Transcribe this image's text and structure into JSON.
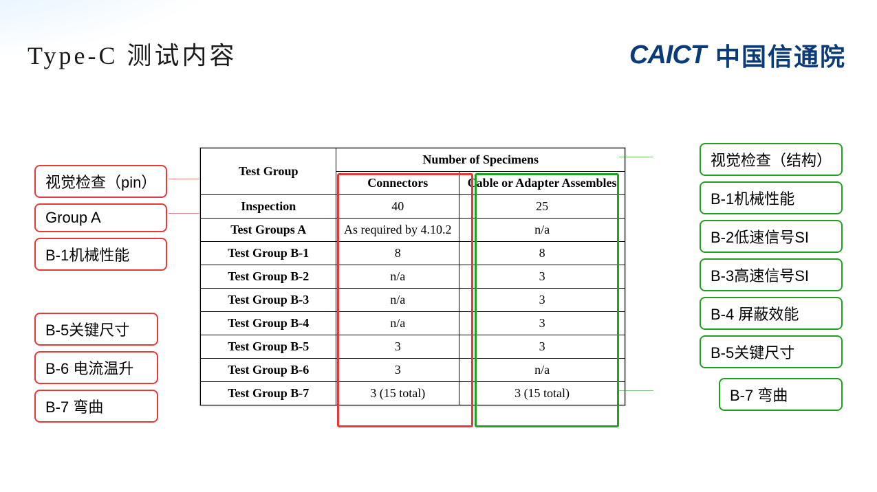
{
  "title": "Type-C 测试内容",
  "logo": {
    "mark": "CAICT",
    "cn": "中国信通院"
  },
  "colors": {
    "red": "#e63939",
    "green": "#1fa01f",
    "brand": "#0a3a7a",
    "table_border": "#000000",
    "background": "#ffffff"
  },
  "pills_left_1": [
    {
      "text": "视觉检查（pin）"
    },
    {
      "text": "Group A"
    },
    {
      "text": "B-1机械性能"
    }
  ],
  "pills_left_2": [
    {
      "text": "B-5关键尺寸"
    },
    {
      "text": "B-6 电流温升"
    },
    {
      "text": "B-7 弯曲"
    }
  ],
  "pills_right_1": [
    {
      "text": "视觉检查（结构）"
    },
    {
      "text": "B-1机械性能"
    },
    {
      "text": "B-2低速信号SI"
    },
    {
      "text": "B-3高速信号SI"
    },
    {
      "text": "B-4 屏蔽效能"
    },
    {
      "text": "B-5关键尺寸"
    }
  ],
  "pills_right_2": [
    {
      "text": "B-7 弯曲"
    }
  ],
  "table": {
    "header": {
      "c0": "Test Group",
      "span": "Number of Specimens",
      "c1": "Connectors",
      "c2": "Cable or Adapter Assembles"
    },
    "rows": [
      {
        "c0": "Inspection",
        "c1": "40",
        "c2": "25"
      },
      {
        "c0": "Test Groups A",
        "c1": "As required by 4.10.2",
        "c2": "n/a"
      },
      {
        "c0": "Test Group B-1",
        "c1": "8",
        "c2": "8"
      },
      {
        "c0": "Test Group B-2",
        "c1": "n/a",
        "c2": "3"
      },
      {
        "c0": "Test Group B-3",
        "c1": "n/a",
        "c2": "3"
      },
      {
        "c0": "Test Group B-4",
        "c1": "n/a",
        "c2": "3"
      },
      {
        "c0": "Test Group B-5",
        "c1": "3",
        "c2": "3"
      },
      {
        "c0": "Test Group B-6",
        "c1": "3",
        "c2": "n/a"
      },
      {
        "c0": "Test Group B-7",
        "c1": "3 (15 total)",
        "c2": "3 (15 total)"
      }
    ]
  }
}
